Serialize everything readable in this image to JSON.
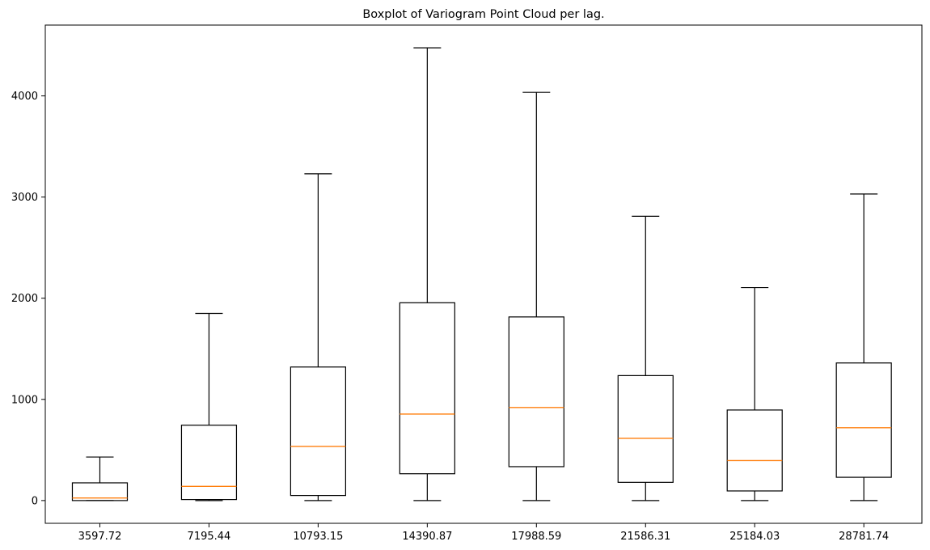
{
  "chart_data": {
    "type": "boxplot",
    "title": "Boxplot of Variogram Point Cloud per lag.",
    "xlabel": "",
    "ylabel": "",
    "categories": [
      "3597.72",
      "7195.44",
      "10793.15",
      "14390.87",
      "17988.59",
      "21586.31",
      "25184.03",
      "28781.74"
    ],
    "boxes": [
      {
        "category": "3597.72",
        "whisker_low": 0,
        "q1": 0,
        "median": 25,
        "q3": 175,
        "whisker_high": 430
      },
      {
        "category": "7195.44",
        "whisker_low": 0,
        "q1": 10,
        "median": 140,
        "q3": 745,
        "whisker_high": 1850
      },
      {
        "category": "10793.15",
        "whisker_low": 0,
        "q1": 50,
        "median": 535,
        "q3": 1320,
        "whisker_high": 3230
      },
      {
        "category": "14390.87",
        "whisker_low": 0,
        "q1": 265,
        "median": 855,
        "q3": 1955,
        "whisker_high": 4475
      },
      {
        "category": "17988.59",
        "whisker_low": 0,
        "q1": 335,
        "median": 920,
        "q3": 1815,
        "whisker_high": 4035
      },
      {
        "category": "21586.31",
        "whisker_low": 0,
        "q1": 180,
        "median": 615,
        "q3": 1235,
        "whisker_high": 2810
      },
      {
        "category": "25184.03",
        "whisker_low": 0,
        "q1": 95,
        "median": 395,
        "q3": 895,
        "whisker_high": 2105
      },
      {
        "category": "28781.74",
        "whisker_low": 0,
        "q1": 230,
        "median": 720,
        "q3": 1360,
        "whisker_high": 3030
      }
    ],
    "yticks": [
      0,
      1000,
      2000,
      3000,
      4000
    ],
    "ylim": [
      -225,
      4700
    ],
    "grid": false,
    "colors": {
      "box": "#000000",
      "median": "#ff7f0e"
    }
  }
}
